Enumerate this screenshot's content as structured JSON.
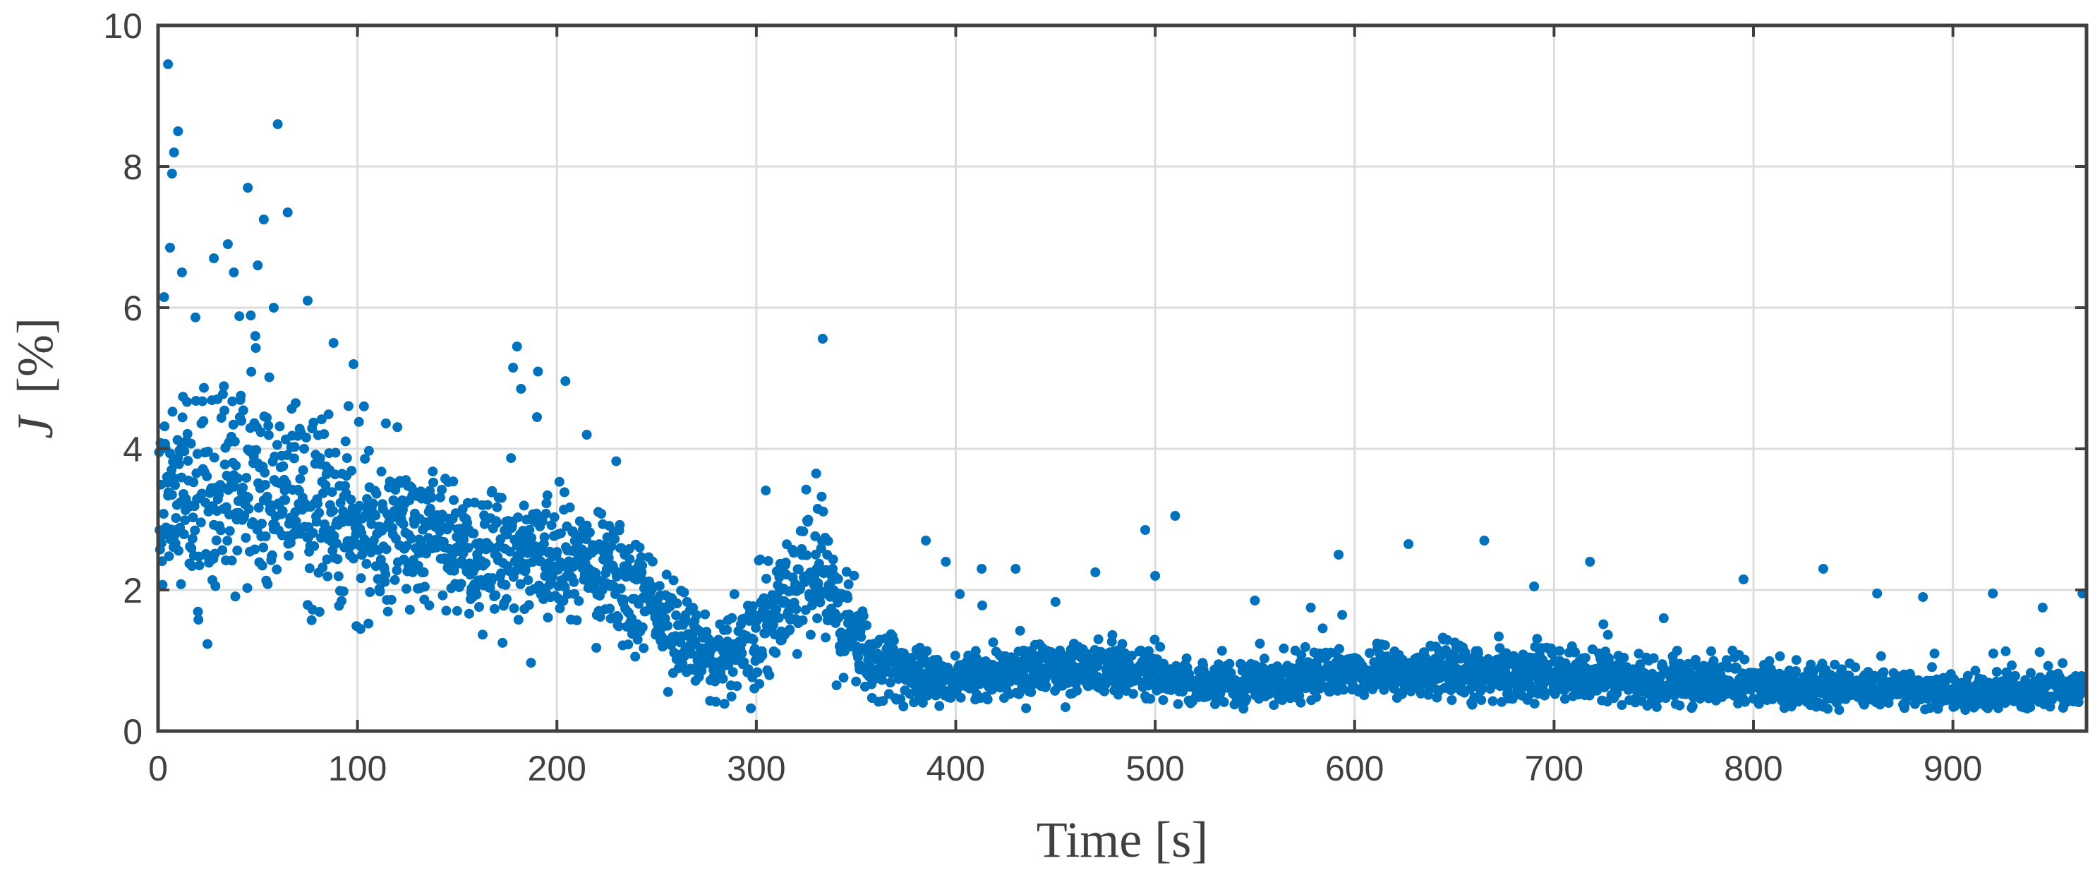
{
  "chart_data": {
    "type": "scatter",
    "title": "",
    "xlabel": "Time [s]",
    "ylabel_symbol": "J",
    "ylabel_unit": "[%]",
    "xlim": [
      0,
      967
    ],
    "ylim": [
      0,
      10
    ],
    "x_ticks": [
      0,
      100,
      200,
      300,
      400,
      500,
      600,
      700,
      800,
      900
    ],
    "x_tick_labels": [
      "0",
      "100",
      "200",
      "300",
      "400",
      "500",
      "600",
      "700",
      "800",
      "900"
    ],
    "y_ticks": [
      0,
      2,
      4,
      6,
      8,
      10
    ],
    "y_tick_labels": [
      "0",
      "2",
      "4",
      "6",
      "8",
      "10"
    ],
    "grid": true,
    "marker_color": "#0072BD",
    "sample_interval_s": 0.25,
    "trend": [
      {
        "t": 0,
        "mean": 3.3,
        "spread": 0.7
      },
      {
        "t": 50,
        "mean": 3.5,
        "spread": 0.75
      },
      {
        "t": 100,
        "mean": 3.0,
        "spread": 0.6
      },
      {
        "t": 150,
        "mean": 2.6,
        "spread": 0.5
      },
      {
        "t": 200,
        "mean": 2.45,
        "spread": 0.45
      },
      {
        "t": 235,
        "mean": 2.2,
        "spread": 0.4
      },
      {
        "t": 260,
        "mean": 1.4,
        "spread": 0.3
      },
      {
        "t": 280,
        "mean": 0.95,
        "spread": 0.25
      },
      {
        "t": 300,
        "mean": 1.3,
        "spread": 0.35
      },
      {
        "t": 320,
        "mean": 1.9,
        "spread": 0.45
      },
      {
        "t": 330,
        "mean": 2.3,
        "spread": 0.5
      },
      {
        "t": 340,
        "mean": 1.8,
        "spread": 0.4
      },
      {
        "t": 355,
        "mean": 1.0,
        "spread": 0.25
      },
      {
        "t": 400,
        "mean": 0.75,
        "spread": 0.18
      },
      {
        "t": 450,
        "mean": 0.9,
        "spread": 0.18
      },
      {
        "t": 500,
        "mean": 0.8,
        "spread": 0.18
      },
      {
        "t": 530,
        "mean": 0.65,
        "spread": 0.15
      },
      {
        "t": 600,
        "mean": 0.85,
        "spread": 0.18
      },
      {
        "t": 700,
        "mean": 0.8,
        "spread": 0.18
      },
      {
        "t": 800,
        "mean": 0.65,
        "spread": 0.15
      },
      {
        "t": 900,
        "mean": 0.55,
        "spread": 0.13
      },
      {
        "t": 965,
        "mean": 0.6,
        "spread": 0.15
      }
    ],
    "outliers": [
      {
        "x": 5,
        "y": 9.45
      },
      {
        "x": 10,
        "y": 8.5
      },
      {
        "x": 8,
        "y": 8.2
      },
      {
        "x": 7,
        "y": 7.9
      },
      {
        "x": 60,
        "y": 8.6
      },
      {
        "x": 45,
        "y": 7.7
      },
      {
        "x": 65,
        "y": 7.35
      },
      {
        "x": 53,
        "y": 7.25
      },
      {
        "x": 35,
        "y": 6.9
      },
      {
        "x": 28,
        "y": 6.7
      },
      {
        "x": 50,
        "y": 6.6
      },
      {
        "x": 38,
        "y": 6.5
      },
      {
        "x": 3,
        "y": 6.15
      },
      {
        "x": 75,
        "y": 6.1
      },
      {
        "x": 58,
        "y": 6.0
      },
      {
        "x": 12,
        "y": 6.5
      },
      {
        "x": 6,
        "y": 6.85
      },
      {
        "x": 180,
        "y": 5.45
      },
      {
        "x": 178,
        "y": 5.15
      },
      {
        "x": 182,
        "y": 4.85
      },
      {
        "x": 98,
        "y": 5.2
      },
      {
        "x": 88,
        "y": 5.5
      },
      {
        "x": 190,
        "y": 4.45
      },
      {
        "x": 215,
        "y": 4.2
      },
      {
        "x": 330,
        "y": 3.65
      },
      {
        "x": 510,
        "y": 3.05
      },
      {
        "x": 495,
        "y": 2.85
      },
      {
        "x": 385,
        "y": 2.7
      },
      {
        "x": 627,
        "y": 2.65
      },
      {
        "x": 665,
        "y": 2.7
      },
      {
        "x": 592,
        "y": 2.5
      },
      {
        "x": 718,
        "y": 2.4
      },
      {
        "x": 835,
        "y": 2.3
      },
      {
        "x": 795,
        "y": 2.15
      },
      {
        "x": 395,
        "y": 2.4
      },
      {
        "x": 430,
        "y": 2.3
      },
      {
        "x": 470,
        "y": 2.25
      },
      {
        "x": 500,
        "y": 2.2
      },
      {
        "x": 920,
        "y": 1.95
      },
      {
        "x": 965,
        "y": 1.95
      },
      {
        "x": 862,
        "y": 1.95
      },
      {
        "x": 885,
        "y": 1.9
      },
      {
        "x": 690,
        "y": 2.05
      },
      {
        "x": 413,
        "y": 2.3
      },
      {
        "x": 550,
        "y": 1.85
      },
      {
        "x": 578,
        "y": 1.75
      },
      {
        "x": 945,
        "y": 1.75
      },
      {
        "x": 755,
        "y": 1.6
      }
    ]
  }
}
